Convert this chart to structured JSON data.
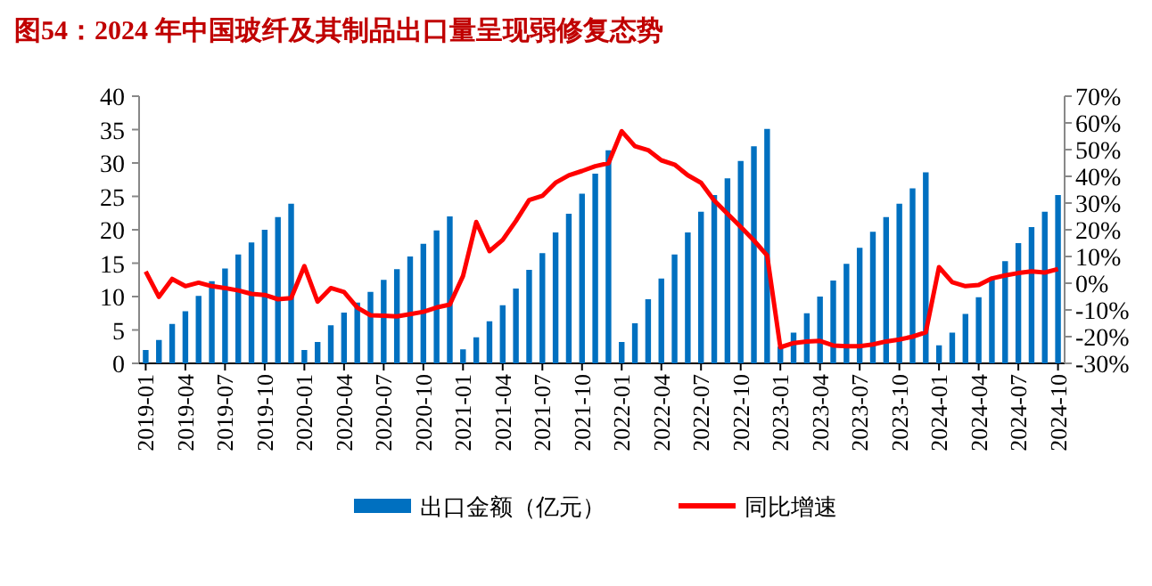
{
  "chart_data": {
    "type": "bar",
    "title": "图54：2024 年中国玻纤及其制品出口量呈现弱修复态势",
    "categories": [
      "2019-01",
      null,
      null,
      "2019-04",
      null,
      null,
      "2019-07",
      null,
      null,
      "2019-10",
      null,
      null,
      "2020-01",
      null,
      null,
      "2020-04",
      null,
      null,
      "2020-07",
      null,
      null,
      "2020-10",
      null,
      null,
      "2021-01",
      null,
      null,
      "2021-04",
      null,
      null,
      "2021-07",
      null,
      null,
      "2021-10",
      null,
      null,
      "2022-01",
      null,
      null,
      "2022-04",
      null,
      null,
      "2022-07",
      null,
      null,
      "2022-10",
      null,
      null,
      "2023-01",
      null,
      null,
      "2023-04",
      null,
      null,
      "2023-07",
      null,
      null,
      "2023-10",
      null,
      null,
      "2024-01",
      null,
      null,
      "2024-04",
      null,
      null,
      "2024-07",
      null,
      null,
      "2024-10"
    ],
    "series": [
      {
        "name": "出口金额（亿元）",
        "type": "bar",
        "color": "#0070c0",
        "values": [
          2.0,
          3.5,
          5.9,
          7.8,
          10.1,
          12.3,
          14.2,
          16.3,
          18.1,
          20.0,
          21.9,
          23.9,
          2.0,
          3.2,
          5.7,
          7.6,
          9.1,
          10.7,
          12.5,
          14.1,
          16.0,
          17.9,
          19.9,
          22.0,
          2.1,
          3.9,
          6.3,
          8.7,
          11.2,
          14.0,
          16.5,
          19.6,
          22.4,
          25.4,
          28.4,
          31.9,
          3.2,
          6.0,
          9.6,
          12.7,
          16.3,
          19.6,
          22.7,
          25.2,
          27.7,
          30.3,
          32.5,
          35.1,
          2.5,
          4.6,
          7.5,
          10.0,
          12.4,
          14.9,
          17.3,
          19.7,
          21.9,
          23.9,
          26.2,
          28.6,
          2.7,
          4.6,
          7.4,
          9.9,
          12.6,
          15.3,
          18.0,
          20.4,
          22.7,
          25.2
        ]
      },
      {
        "name": "同比增速",
        "type": "line",
        "axis": "y2",
        "color": "#ff0000",
        "values": [
          4.4,
          -5.1,
          1.6,
          -1.1,
          0.2,
          -1.1,
          -1.8,
          -2.7,
          -4.0,
          -4.4,
          -6.0,
          -5.6,
          6.4,
          -6.9,
          -1.8,
          -3.3,
          -9.1,
          -12.0,
          -12.2,
          -12.4,
          -11.6,
          -10.7,
          -9.1,
          -8.0,
          2.7,
          22.9,
          12.0,
          16.2,
          23.3,
          31.1,
          32.7,
          37.6,
          40.4,
          42.0,
          43.8,
          44.9,
          56.9,
          51.3,
          49.8,
          46.0,
          44.4,
          40.4,
          37.6,
          30.9,
          26.0,
          21.1,
          16.0,
          10.4,
          -24.0,
          -22.4,
          -21.8,
          -21.6,
          -23.3,
          -23.6,
          -23.6,
          -22.9,
          -21.8,
          -21.1,
          -20.0,
          -18.4,
          6.0,
          0.4,
          -1.1,
          -0.7,
          1.8,
          2.9,
          3.8,
          4.4,
          4.0,
          5.3
        ]
      }
    ],
    "ylim": [
      0,
      40
    ],
    "yticks": [
      0,
      5,
      10,
      15,
      20,
      25,
      30,
      35,
      40
    ],
    "y2lim": [
      -30,
      70
    ],
    "y2ticks": [
      {
        "value": -30,
        "label": "-30%"
      },
      {
        "value": -20,
        "label": "-20%"
      },
      {
        "value": -10,
        "label": "-10%"
      },
      {
        "value": 0,
        "label": "0%"
      },
      {
        "value": 10,
        "label": "10%"
      },
      {
        "value": 20,
        "label": "20%"
      },
      {
        "value": 30,
        "label": "30%"
      },
      {
        "value": 40,
        "label": "40%"
      },
      {
        "value": 50,
        "label": "50%"
      },
      {
        "value": 60,
        "label": "60%"
      },
      {
        "value": 70,
        "label": "70%"
      }
    ],
    "legend": "bottom"
  }
}
